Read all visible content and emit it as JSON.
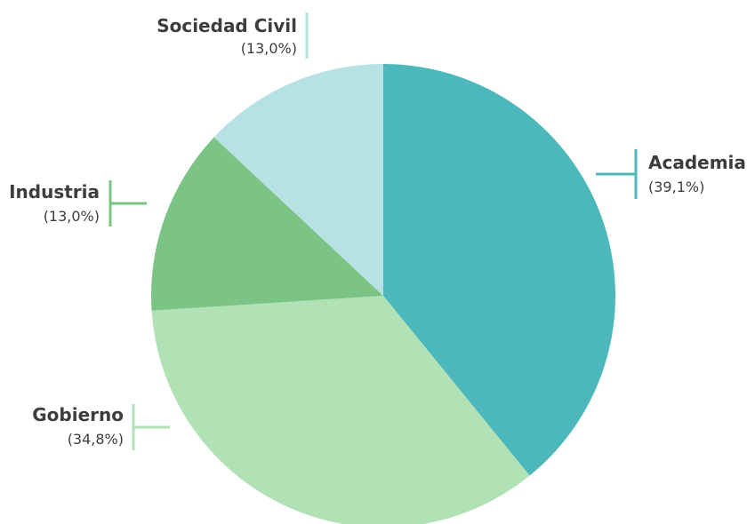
{
  "chart_data": {
    "type": "pie",
    "start_angle_deg": 90,
    "direction": "clockwise",
    "slices": [
      {
        "label": "Academia",
        "value": 39.1,
        "value_label": "(39,1%)",
        "color": "#4db8bb"
      },
      {
        "label": "Gobierno",
        "value": 34.8,
        "value_label": "(34,8%)",
        "color": "#b0e2b6"
      },
      {
        "label": "Industria",
        "value": 13.0,
        "value_label": "(13,0%)",
        "color": "#7bc485"
      },
      {
        "label": "Sociedad Civil",
        "value": 13.0,
        "value_label": "(13,0%)",
        "color": "#b7e2e4"
      }
    ]
  }
}
